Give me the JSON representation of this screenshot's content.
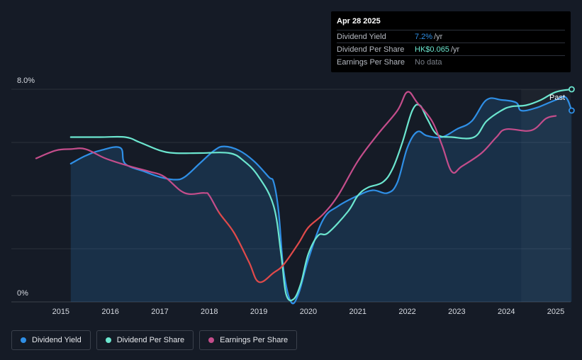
{
  "tooltip": {
    "date": "Apr 28 2025",
    "rows": [
      {
        "label": "Dividend Yield",
        "value": "7.2%",
        "unit": "/yr",
        "color": "#2f8fe6"
      },
      {
        "label": "Dividend Per Share",
        "value": "HK$0.065",
        "unit": "/yr",
        "color": "#6ce6cf"
      },
      {
        "label": "Earnings Per Share",
        "value": "No data",
        "unit": "",
        "color": "#7a7f88"
      }
    ]
  },
  "past_label": "Past",
  "legend": [
    {
      "label": "Dividend Yield",
      "color": "#2f8fe6"
    },
    {
      "label": "Dividend Per Share",
      "color": "#6ce6cf"
    },
    {
      "label": "Earnings Per Share",
      "color": "#c44d8b"
    }
  ],
  "chart_data": {
    "type": "line",
    "y_tick_labels": [
      "8.0%",
      "0%"
    ],
    "ylim": [
      0,
      8
    ],
    "xlim": [
      2014.0,
      2025.3
    ],
    "x_ticks": [
      2015,
      2016,
      2017,
      2018,
      2019,
      2020,
      2021,
      2022,
      2023,
      2024,
      2025
    ],
    "x_tick_labels": [
      "2015",
      "2016",
      "2017",
      "2018",
      "2019",
      "2020",
      "2021",
      "2022",
      "2023",
      "2024",
      "2025"
    ],
    "grid": true,
    "legend_position": "bottom-left",
    "forecast_shade_start": 2024.3,
    "series": [
      {
        "name": "Dividend Yield",
        "color": "#2f8fe6",
        "filled": true,
        "points": [
          [
            2015.2,
            5.2
          ],
          [
            2015.5,
            5.5
          ],
          [
            2015.8,
            5.7
          ],
          [
            2016.2,
            5.8
          ],
          [
            2016.3,
            5.2
          ],
          [
            2016.7,
            4.9
          ],
          [
            2017.0,
            4.7
          ],
          [
            2017.3,
            4.6
          ],
          [
            2017.5,
            4.7
          ],
          [
            2017.8,
            5.2
          ],
          [
            2018.1,
            5.7
          ],
          [
            2018.3,
            5.85
          ],
          [
            2018.6,
            5.7
          ],
          [
            2018.9,
            5.3
          ],
          [
            2019.2,
            4.7
          ],
          [
            2019.3,
            4.5
          ],
          [
            2019.4,
            3.4
          ],
          [
            2019.5,
            1.2
          ],
          [
            2019.65,
            0.0
          ],
          [
            2019.8,
            0.3
          ],
          [
            2020.0,
            1.6
          ],
          [
            2020.3,
            3.1
          ],
          [
            2020.6,
            3.6
          ],
          [
            2021.0,
            4.0
          ],
          [
            2021.3,
            4.2
          ],
          [
            2021.6,
            4.1
          ],
          [
            2021.8,
            4.5
          ],
          [
            2022.0,
            5.8
          ],
          [
            2022.2,
            6.4
          ],
          [
            2022.4,
            6.25
          ],
          [
            2022.7,
            6.2
          ],
          [
            2023.0,
            6.5
          ],
          [
            2023.3,
            6.8
          ],
          [
            2023.6,
            7.6
          ],
          [
            2023.9,
            7.6
          ],
          [
            2024.2,
            7.5
          ],
          [
            2024.3,
            7.2
          ],
          [
            2024.6,
            7.3
          ],
          [
            2025.0,
            7.6
          ],
          [
            2025.2,
            7.7
          ],
          [
            2025.32,
            7.2
          ]
        ]
      },
      {
        "name": "Dividend Per Share",
        "color": "#6ce6cf",
        "filled": false,
        "points": [
          [
            2015.2,
            6.2
          ],
          [
            2015.8,
            6.2
          ],
          [
            2016.3,
            6.2
          ],
          [
            2016.6,
            6.0
          ],
          [
            2017.0,
            5.7
          ],
          [
            2017.3,
            5.6
          ],
          [
            2017.8,
            5.6
          ],
          [
            2018.4,
            5.6
          ],
          [
            2018.7,
            5.3
          ],
          [
            2019.0,
            4.7
          ],
          [
            2019.3,
            3.6
          ],
          [
            2019.45,
            1.8
          ],
          [
            2019.55,
            0.3
          ],
          [
            2019.7,
            0.1
          ],
          [
            2019.85,
            0.7
          ],
          [
            2020.0,
            1.8
          ],
          [
            2020.2,
            2.5
          ],
          [
            2020.4,
            2.6
          ],
          [
            2020.8,
            3.4
          ],
          [
            2021.0,
            4.0
          ],
          [
            2021.2,
            4.3
          ],
          [
            2021.5,
            4.5
          ],
          [
            2021.7,
            5.0
          ],
          [
            2021.9,
            6.0
          ],
          [
            2022.1,
            7.2
          ],
          [
            2022.25,
            7.4
          ],
          [
            2022.4,
            6.9
          ],
          [
            2022.6,
            6.3
          ],
          [
            2022.9,
            6.2
          ],
          [
            2023.35,
            6.2
          ],
          [
            2023.6,
            6.8
          ],
          [
            2023.9,
            7.2
          ],
          [
            2024.1,
            7.35
          ],
          [
            2024.4,
            7.4
          ],
          [
            2024.7,
            7.6
          ],
          [
            2025.0,
            7.9
          ],
          [
            2025.32,
            8.0
          ]
        ]
      },
      {
        "name": "Earnings Per Share",
        "color": "#c44d8b",
        "filled": false,
        "points": [
          [
            2014.5,
            5.4
          ],
          [
            2014.9,
            5.7
          ],
          [
            2015.2,
            5.75
          ],
          [
            2015.5,
            5.75
          ],
          [
            2015.9,
            5.4
          ],
          [
            2016.4,
            5.1
          ],
          [
            2016.8,
            4.9
          ],
          [
            2017.1,
            4.7
          ],
          [
            2017.5,
            4.1
          ],
          [
            2017.9,
            4.1
          ],
          [
            2018.0,
            4.0
          ],
          [
            2018.2,
            3.35
          ],
          [
            2018.5,
            2.6
          ],
          [
            2018.8,
            1.5
          ],
          [
            2019.0,
            0.75
          ],
          [
            2019.3,
            1.1
          ],
          [
            2019.5,
            1.4
          ],
          [
            2019.8,
            2.2
          ],
          [
            2020.0,
            2.8
          ],
          [
            2020.3,
            3.3
          ],
          [
            2020.6,
            4.0
          ],
          [
            2021.0,
            5.3
          ],
          [
            2021.4,
            6.3
          ],
          [
            2021.8,
            7.2
          ],
          [
            2022.0,
            7.9
          ],
          [
            2022.2,
            7.5
          ],
          [
            2022.5,
            6.8
          ],
          [
            2022.7,
            5.9
          ],
          [
            2022.9,
            4.9
          ],
          [
            2023.1,
            5.1
          ],
          [
            2023.5,
            5.6
          ],
          [
            2023.8,
            6.2
          ],
          [
            2024.0,
            6.5
          ],
          [
            2024.5,
            6.45
          ],
          [
            2024.8,
            6.9
          ],
          [
            2025.0,
            7.0
          ]
        ]
      }
    ]
  }
}
